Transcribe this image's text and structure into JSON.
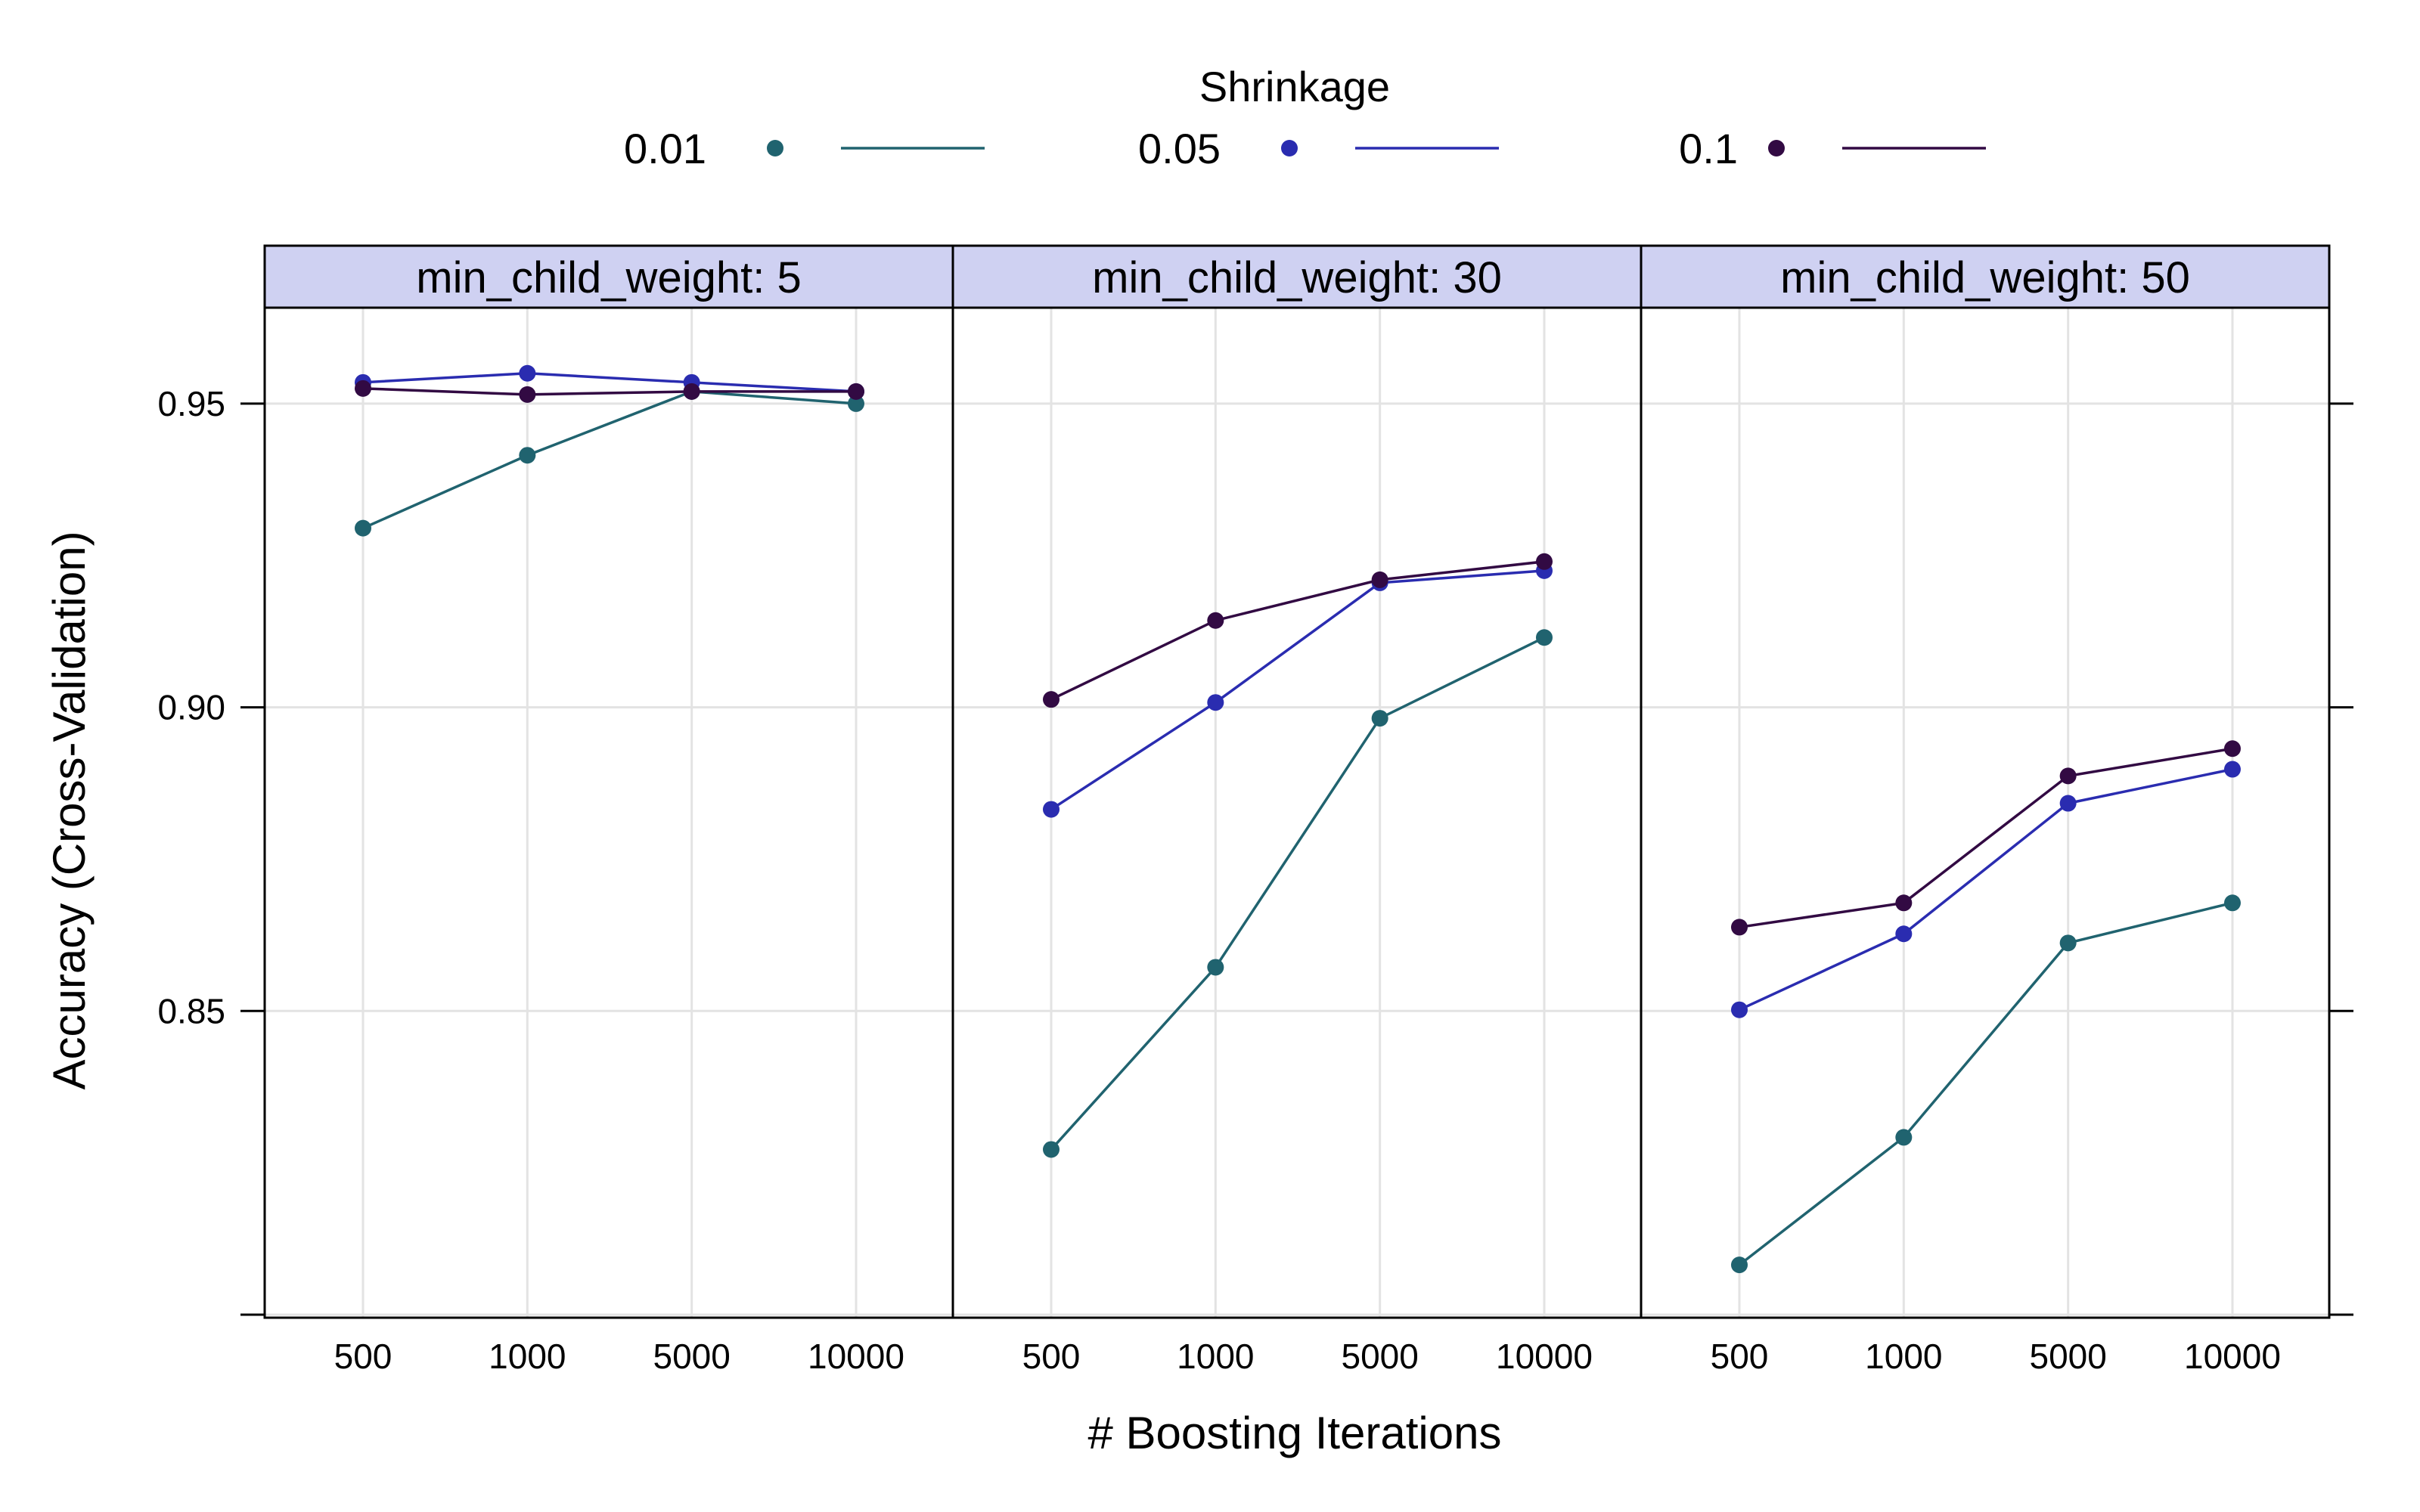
{
  "chart_data": {
    "type": "line",
    "legend": {
      "title": "Shrinkage",
      "placement": "top"
    },
    "xlabel": "# Boosting Iterations",
    "ylabel": "Accuracy (Cross-Validation)",
    "x_categories": [
      "500",
      "1000",
      "5000",
      "10000"
    ],
    "y_ticks": [
      0.85,
      0.9,
      0.95
    ],
    "y_tick_labels": [
      "0.85",
      "0.90",
      "0.95"
    ],
    "ylim": [
      0.7995,
      0.9658
    ],
    "grid": true,
    "series_styles": [
      {
        "name": "0.01",
        "color": "#20636f"
      },
      {
        "name": "0.05",
        "color": "#2a2cb0"
      },
      {
        "name": "0.1",
        "color": "#320a43"
      }
    ],
    "panels": [
      {
        "strip": "min_child_weight:  5",
        "series": [
          {
            "name": "0.01",
            "values": [
              0.9295,
              0.9415,
              0.952,
              0.95
            ]
          },
          {
            "name": "0.05",
            "values": [
              0.9535,
              0.955,
              0.9535,
              0.952
            ]
          },
          {
            "name": "0.1",
            "values": [
              0.9525,
              0.9515,
              0.952,
              0.952
            ]
          }
        ]
      },
      {
        "strip": "min_child_weight: 30",
        "series": [
          {
            "name": "0.01",
            "values": [
              0.8272,
              0.8572,
              0.8982,
              0.9115
            ]
          },
          {
            "name": "0.05",
            "values": [
              0.8832,
              0.9008,
              0.9205,
              0.9225
            ]
          },
          {
            "name": "0.1",
            "values": [
              0.9013,
              0.9143,
              0.921,
              0.924
            ]
          }
        ]
      },
      {
        "strip": "min_child_weight: 50",
        "series": [
          {
            "name": "0.01",
            "values": [
              0.8082,
              0.8292,
              0.8612,
              0.8678
            ]
          },
          {
            "name": "0.05",
            "values": [
              0.8502,
              0.8627,
              0.8842,
              0.8898
            ]
          },
          {
            "name": "0.1",
            "values": [
              0.8638,
              0.8678,
              0.8887,
              0.8932
            ]
          }
        ]
      }
    ]
  }
}
